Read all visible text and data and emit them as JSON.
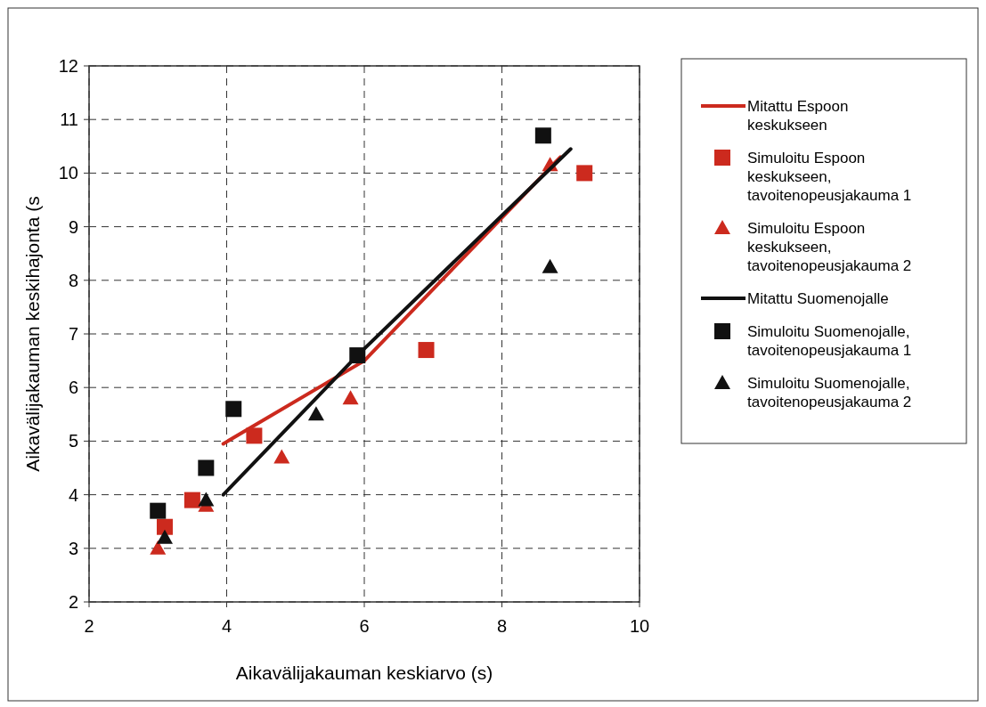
{
  "chart_data": {
    "type": "scatter",
    "xlabel": "Aikavälijakauman keskiarvo (s)",
    "ylabel": "Aikavälijakauman keskihajonta (s",
    "xlim": [
      2,
      10
    ],
    "ylim": [
      2,
      12
    ],
    "xticks": [
      2,
      4,
      6,
      8,
      10
    ],
    "yticks": [
      2,
      3,
      4,
      5,
      6,
      7,
      8,
      9,
      10,
      11,
      12
    ],
    "grid": true,
    "legend": "right",
    "series": [
      {
        "name": "Mitattu Espoon keskukseen",
        "type": "line",
        "color": "#cc2a1e",
        "marker": "none",
        "x": [
          3.95,
          6.0,
          8.85
        ],
        "values": [
          4.95,
          6.5,
          10.3
        ]
      },
      {
        "name": "Simuloitu Espoon keskukseen, tavoitenopeusjakauma 1",
        "color": "#cc2a1e",
        "marker": "square",
        "x": [
          3.1,
          3.5,
          4.4,
          6.9,
          9.2
        ],
        "values": [
          3.4,
          3.9,
          5.1,
          6.7,
          10.0
        ]
      },
      {
        "name": "Simuloitu Espoon keskukseen, tavoitenopeusjakauma 2",
        "color": "#cc2a1e",
        "marker": "triangle",
        "x": [
          3.0,
          3.7,
          4.8,
          5.8,
          8.7
        ],
        "values": [
          3.0,
          3.8,
          4.7,
          5.8,
          10.15
        ]
      },
      {
        "name": "Mitattu Suomenojalle",
        "type": "line",
        "color": "#111111",
        "marker": "none",
        "x": [
          3.95,
          5.9,
          9.0
        ],
        "values": [
          4.0,
          6.6,
          10.45
        ]
      },
      {
        "name": "Simuloitu Suomenojalle, tavoitenopeusjakauma 1",
        "color": "#111111",
        "marker": "square",
        "x": [
          3.0,
          3.7,
          4.1,
          5.9,
          8.6
        ],
        "values": [
          3.7,
          4.5,
          5.6,
          6.6,
          10.7
        ]
      },
      {
        "name": "Simuloitu Suomenojalle, tavoitenopeusjakauma 2",
        "color": "#111111",
        "marker": "triangle",
        "x": [
          3.1,
          3.7,
          5.3,
          8.7
        ],
        "values": [
          3.2,
          3.9,
          5.5,
          8.25
        ]
      }
    ]
  }
}
